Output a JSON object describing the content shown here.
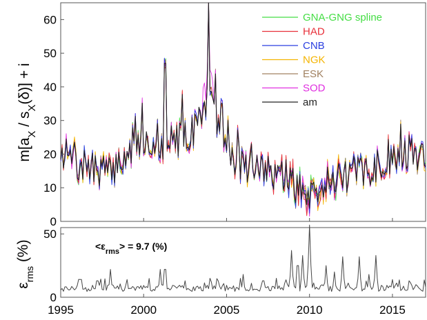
{
  "chart_data": [
    {
      "type": "line",
      "ylabel_parts": {
        "m": "m[a",
        "x1": "X",
        "mid": " / s",
        "x2": "X",
        "delta": "(δ)] + i"
      },
      "ylim": [
        0,
        65
      ],
      "xlim": [
        1995,
        2017
      ],
      "yticks": [
        "0",
        "10",
        "20",
        "30",
        "40",
        "50",
        "60"
      ],
      "series": [
        {
          "name": "GNA-GNG spline",
          "color": "#44dd44"
        },
        {
          "name": "HAD",
          "color": "#e8303a"
        },
        {
          "name": "CNB",
          "color": "#2b3fe0"
        },
        {
          "name": "NGK",
          "color": "#f4b400"
        },
        {
          "name": "ESK",
          "color": "#a08060"
        },
        {
          "name": "SOD",
          "color": "#e030e0"
        },
        {
          "name": "am",
          "color": "#222222"
        }
      ],
      "am_anchor": {
        "x": [
          1995.0,
          1995.5,
          1996.0,
          1996.5,
          1997.0,
          1997.5,
          1998.0,
          1998.5,
          1999.0,
          1999.5,
          2000.0,
          2000.5,
          2001.0,
          2001.5,
          2002.0,
          2002.5,
          2003.0,
          2003.5,
          2003.9,
          2004.2,
          2004.6,
          2005.0,
          2005.5,
          2006.0,
          2006.5,
          2007.0,
          2007.5,
          2008.0,
          2008.5,
          2009.0,
          2009.5,
          2010.0,
          2010.5,
          2011.0,
          2011.5,
          2012.0,
          2012.5,
          2013.0,
          2013.5,
          2014.0,
          2014.5,
          2015.0,
          2015.5,
          2016.0,
          2016.5,
          2017.0
        ],
        "y": [
          21,
          19,
          16,
          17,
          15,
          16,
          14,
          18,
          19,
          21,
          23,
          24,
          22,
          23,
          24,
          25,
          27,
          32,
          36,
          33,
          25,
          22,
          18,
          17,
          16,
          16,
          15,
          14,
          13,
          11,
          9,
          7,
          9,
          12,
          13,
          13,
          14,
          15,
          14,
          16,
          17,
          19,
          20,
          21,
          20,
          19
        ]
      },
      "spikes": [
        {
          "x": 2001.3,
          "y": 47
        },
        {
          "x": 2003.9,
          "y": 65
        },
        {
          "x": 2004.7,
          "y": 35
        },
        {
          "x": 2005.1,
          "y": 30
        }
      ]
    },
    {
      "type": "line",
      "ylabel_parts": {
        "eps": "ε",
        "sub": "rms",
        "unit": " (%)"
      },
      "ylim": [
        0,
        55
      ],
      "xlim": [
        1995,
        2017
      ],
      "yticks": [
        "0",
        "50"
      ],
      "xticks": [
        "1995",
        "2000",
        "2005",
        "2010",
        "2015"
      ],
      "annotation_parts": {
        "open": "<ε",
        "sub": "rms",
        "close": "> = 9.7 (%)"
      },
      "baseline": 7,
      "spikes": [
        {
          "x": 1996.2,
          "y": 14
        },
        {
          "x": 1997.2,
          "y": 13
        },
        {
          "x": 1998.0,
          "y": 22
        },
        {
          "x": 1999.0,
          "y": 14
        },
        {
          "x": 2001.0,
          "y": 22
        },
        {
          "x": 2001.3,
          "y": 22
        },
        {
          "x": 2002.5,
          "y": 13
        },
        {
          "x": 2004.0,
          "y": 15
        },
        {
          "x": 2006.0,
          "y": 18
        },
        {
          "x": 2007.2,
          "y": 13
        },
        {
          "x": 2008.0,
          "y": 15
        },
        {
          "x": 2008.9,
          "y": 37
        },
        {
          "x": 2009.3,
          "y": 25
        },
        {
          "x": 2009.6,
          "y": 33
        },
        {
          "x": 2010.0,
          "y": 57
        },
        {
          "x": 2011.0,
          "y": 25
        },
        {
          "x": 2011.5,
          "y": 20
        },
        {
          "x": 2012.0,
          "y": 32
        },
        {
          "x": 2013.0,
          "y": 32
        },
        {
          "x": 2013.6,
          "y": 18
        },
        {
          "x": 2014.0,
          "y": 33
        },
        {
          "x": 2015.0,
          "y": 14
        },
        {
          "x": 2016.0,
          "y": 13
        }
      ]
    }
  ]
}
